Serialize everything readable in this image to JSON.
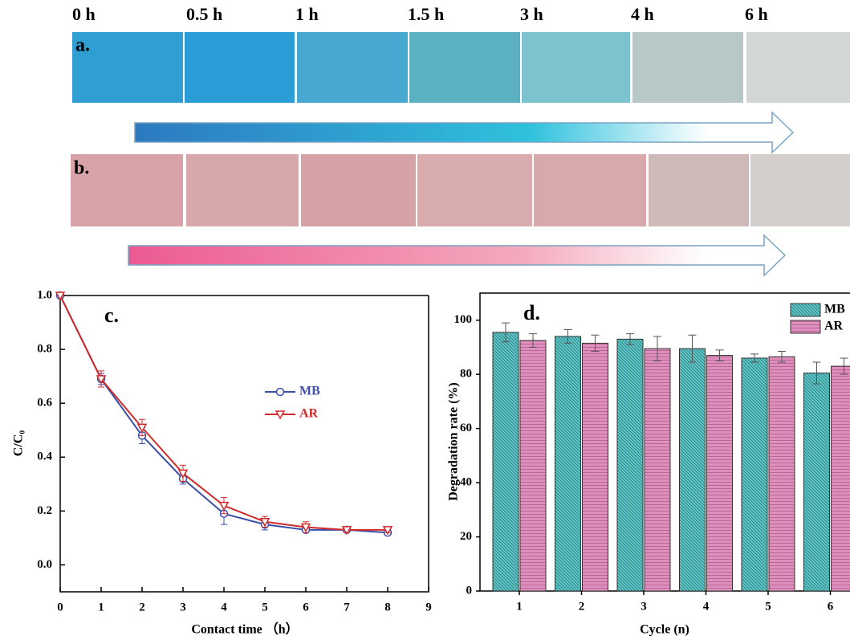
{
  "photos": {
    "times": [
      "0 h",
      "0.5 h",
      "1 h",
      "1.5 h",
      "3 h",
      "4 h",
      "6 h"
    ],
    "panels": [
      "a.",
      "b."
    ]
  },
  "chart_data": [
    {
      "type": "line",
      "annotation": "c.",
      "x_label": "Contact time （h）",
      "y_label": "C/C₀",
      "x": [
        0,
        1,
        2,
        3,
        4,
        5,
        6,
        7,
        8
      ],
      "xlim": [
        0,
        9
      ],
      "xticks": [
        0,
        1,
        2,
        3,
        4,
        5,
        6,
        7,
        8,
        9
      ],
      "ylim": [
        -0.1,
        1.0
      ],
      "yticks": [
        {
          "value": 0,
          "label": "0.0"
        },
        0.2,
        0.4,
        0.6,
        0.8,
        {
          "value": 1,
          "label": "1.0"
        }
      ],
      "series": [
        {
          "name": "MB",
          "color": "#3c4fa8",
          "marker": "circle",
          "values": [
            1.0,
            0.69,
            0.48,
            0.32,
            0.19,
            0.15,
            0.13,
            0.13,
            0.12
          ],
          "errors": [
            0,
            0.02,
            0.03,
            0.02,
            0.04,
            0.02,
            0.01,
            0.01,
            0.01
          ]
        },
        {
          "name": "AR",
          "color": "#d02a2a",
          "marker": "triangle-down",
          "values": [
            1.0,
            0.69,
            0.51,
            0.34,
            0.22,
            0.16,
            0.14,
            0.13,
            0.13
          ],
          "errors": [
            0,
            0.03,
            0.03,
            0.03,
            0.03,
            0.02,
            0.02,
            0.01,
            0.01
          ]
        }
      ]
    },
    {
      "type": "bar",
      "annotation": "d.",
      "x_label": "Cycle (n)",
      "y_label": "Degradation rate (%)",
      "categories": [
        "1",
        "2",
        "3",
        "4",
        "5",
        "6"
      ],
      "ylim": [
        0,
        110
      ],
      "yticks": [
        0,
        20,
        40,
        60,
        80,
        100
      ],
      "series": [
        {
          "name": "MB",
          "color": "#5cc5c5",
          "values": [
            95.5,
            94,
            93,
            89.5,
            86,
            80.5
          ],
          "errors": [
            3.5,
            2.5,
            2,
            5,
            1.5,
            4
          ]
        },
        {
          "name": "AR",
          "color": "#e08fbd",
          "values": [
            92.5,
            91.5,
            89.5,
            87,
            86.5,
            83
          ],
          "errors": [
            2.5,
            3,
            4.5,
            2,
            2,
            3
          ]
        }
      ]
    }
  ]
}
